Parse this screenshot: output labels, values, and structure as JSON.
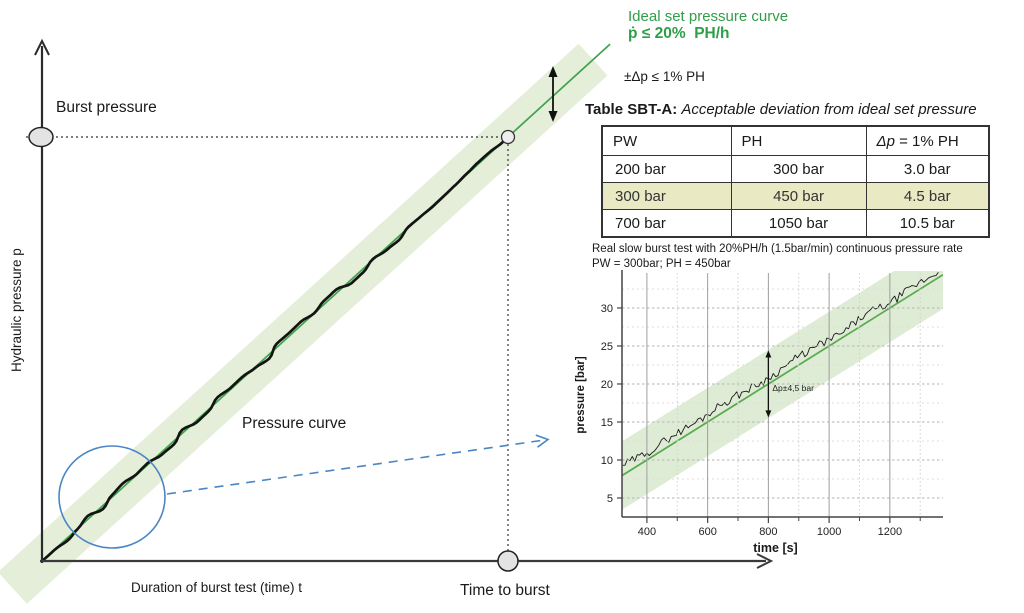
{
  "labels": {
    "burst_pressure": "Burst pressure",
    "pressure_curve": "Pressure curve",
    "hydraulic_axis": "Hydraulic pressure p",
    "duration_axis": "Duration of burst test (time) t",
    "time_to_burst": "Time to burst",
    "ideal_title_1": "Ideal set pressure curve",
    "ideal_title_2": "ṗ ≤ 20%  PH/h",
    "deviation": "±Δp ≤ 1% PH"
  },
  "table": {
    "caption_bold": "Table SBT-A:",
    "caption_italic": "Acceptable deviation from ideal set pressure",
    "headers": [
      "PW",
      "PH"
    ],
    "dp_italic": "Δp",
    "dp_rest": " = 1% PH",
    "rows": [
      [
        "200 bar",
        "300 bar",
        "3.0 bar"
      ],
      [
        "300 bar",
        "450 bar",
        "4.5 bar"
      ],
      [
        "700 bar",
        "1050 bar",
        "10.5 bar"
      ]
    ],
    "highlighted_row": 1
  },
  "colors": {
    "green_text": "#2f9e48",
    "green_line": "#3fa34c",
    "band_fill": "#e4eed8",
    "inset_band_fill": "#dcead0",
    "inset_green": "#5aab4f",
    "blue": "#4a86c4",
    "highlight_row": "#e9eac3",
    "axis": "#2b2b2b",
    "curve": "#141414",
    "marker_fill": "#e3e3e3"
  },
  "chart_data": [
    {
      "id": "main-schematic",
      "type": "line",
      "xlabel": "Duration of burst test (time) t",
      "ylabel": "Hydraulic pressure p",
      "series": [
        {
          "name": "Pressure curve",
          "style": "noisy black line from origin to burst point"
        },
        {
          "name": "Ideal set pressure curve ṗ ≤ 20% PH/h",
          "style": "straight green line with tolerance band"
        }
      ],
      "annotations": [
        "Burst pressure",
        "Time to burst",
        "±Δp ≤ 1% PH",
        "Pressure curve"
      ],
      "axis_ranges": "schematic, no numeric scale"
    },
    {
      "id": "inset-real-test",
      "type": "line",
      "title": "Real slow burst test with 20%PH/h (1.5bar/min) continuous pressure rate",
      "subtitle": "PW = 300bar; PH = 450bar",
      "xlabel": "time [s]",
      "ylabel": "pressure [bar]",
      "xlim": [
        318,
        1375
      ],
      "ylim": [
        2.5,
        34.6
      ],
      "xticks_major": [
        400,
        600,
        800,
        1000,
        1200
      ],
      "xticks_minor": [
        500,
        700,
        900,
        1100,
        1300
      ],
      "yticks": [
        5,
        10,
        15,
        20,
        25,
        30
      ],
      "yticks_minor": [
        7.5,
        12.5,
        17.5,
        22.5,
        27.5,
        32.5
      ],
      "grid": true,
      "legend_position": "none",
      "ideal_line": {
        "name": "Ideal set pressure",
        "t_start": 320,
        "p_start": 8.0,
        "rate_bar_per_s": 0.025,
        "t_end": 1375
      },
      "tolerance_band": {
        "halfwidth_bar": 4.5,
        "label": "Δp±4,5 bar"
      },
      "annotation_arrow": {
        "t": 800,
        "p_from": 15.6,
        "p_to": 24.4
      },
      "measured_series": {
        "name": "Measured pressure",
        "points": [
          [
            320,
            9.3
          ],
          [
            400,
            10.9
          ],
          [
            480,
            13.1
          ],
          [
            560,
            14.9
          ],
          [
            640,
            17.2
          ],
          [
            720,
            19.0
          ],
          [
            800,
            20.7
          ],
          [
            880,
            23.1
          ],
          [
            960,
            25.0
          ],
          [
            1040,
            26.6
          ],
          [
            1120,
            29.2
          ],
          [
            1200,
            30.6
          ],
          [
            1280,
            32.9
          ],
          [
            1360,
            34.7
          ]
        ]
      }
    }
  ]
}
